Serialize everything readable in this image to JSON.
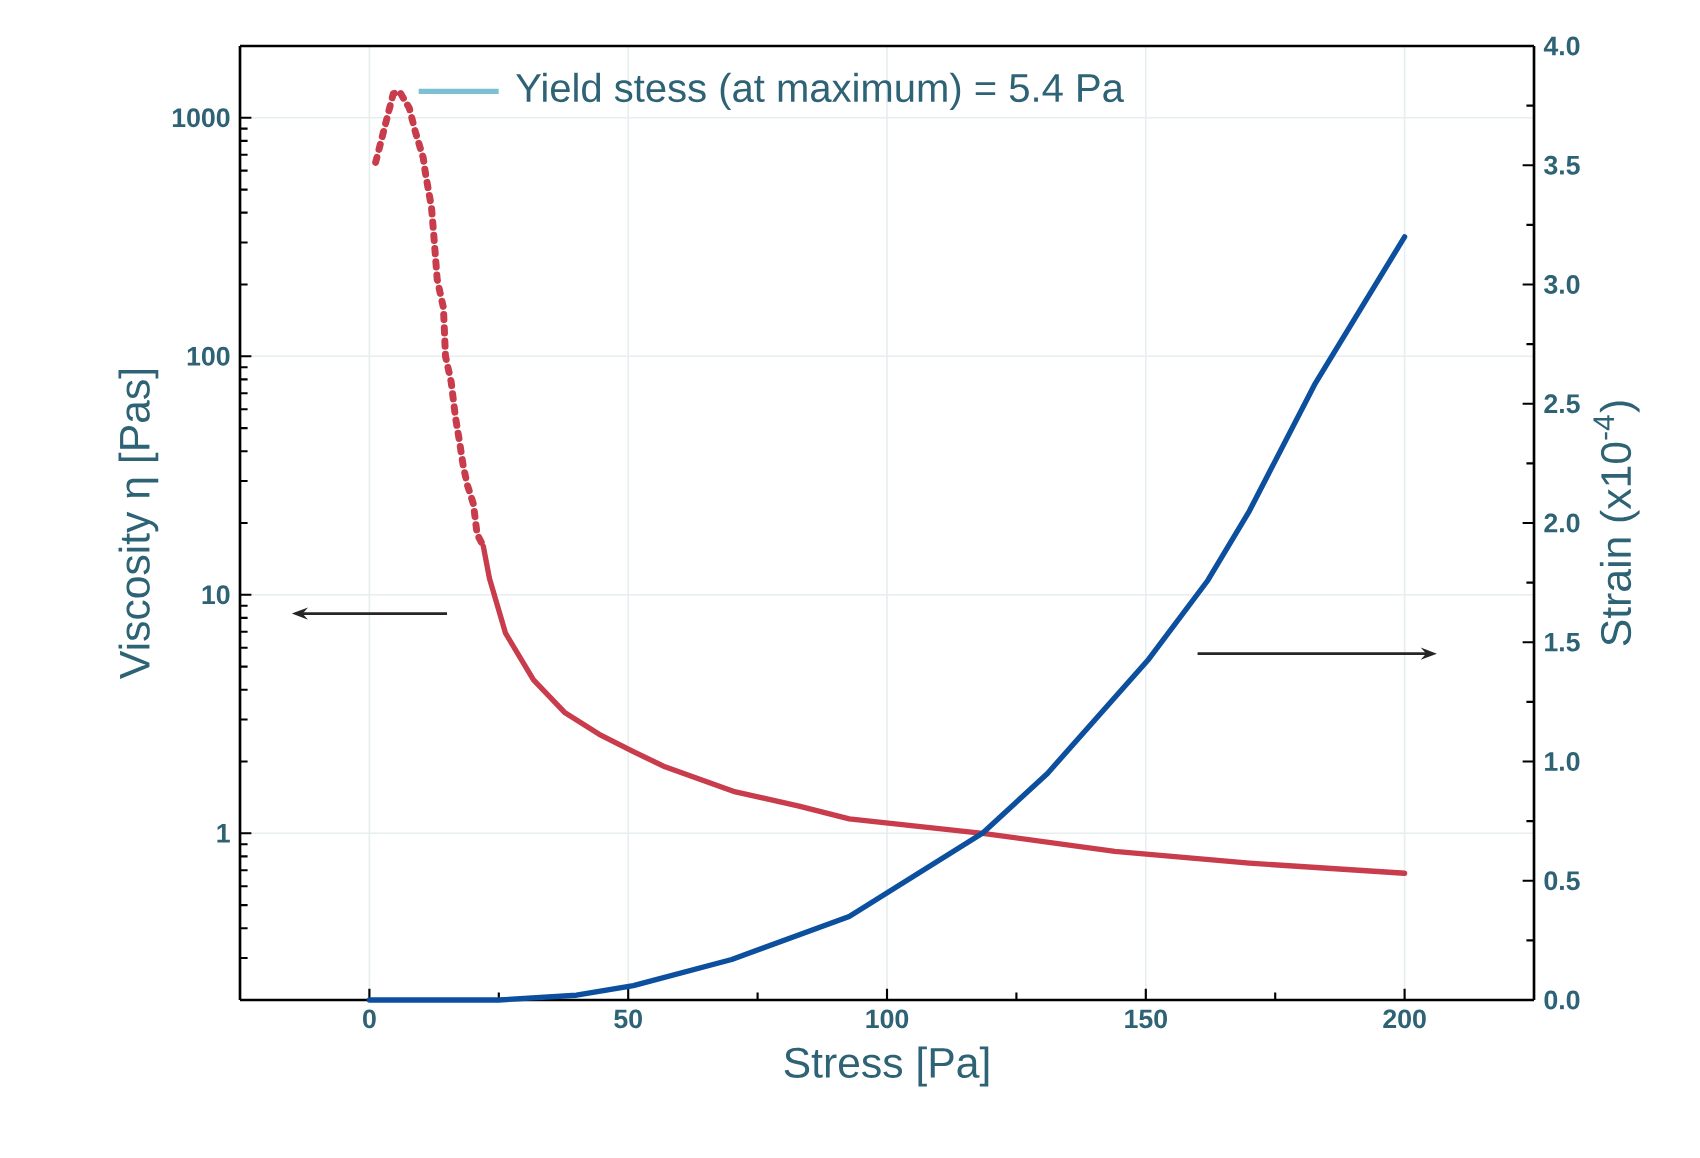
{
  "chart_data": {
    "type": "line",
    "xlabel": "Stress [Pa]",
    "ylabel": "Viscosity η [Pas]",
    "y2label": "Strain (x10$^{-4}$)",
    "annotations": [
      {
        "text": "Yield stess (at maximum) = 5.4 Pa",
        "x": 5.4,
        "y": 1290
      }
    ],
    "series": [
      {
        "color": "#c83c4c",
        "line_style": "dotted",
        "x": [
          1.2,
          2.7,
          4.6,
          5.8,
          7.7,
          8.9,
          10.4,
          10.8,
          12.0,
          12.4,
          13.1,
          14.3,
          14.7,
          15.8,
          16.6,
          17.4,
          18.1,
          18.9,
          20.1,
          20.8,
          22.0
        ],
        "values": [
          650,
          870,
          1260,
          1290,
          1100,
          870,
          680,
          590,
          420,
          330,
          210,
          160,
          100,
          78,
          56,
          44,
          35,
          29,
          24,
          18,
          16
        ]
      },
      {
        "color": "#c83c4c",
        "line_style": "solid",
        "x": [
          22.0,
          23.2,
          26.3,
          31.7,
          37.8,
          44.4,
          51,
          57.1,
          70.3,
          83,
          92.7,
          118.5,
          144,
          170,
          200
        ],
        "values": [
          16,
          11.7,
          6.9,
          4.4,
          3.2,
          2.6,
          2.2,
          1.9,
          1.5,
          1.3,
          1.15,
          1.0,
          0.84,
          0.75,
          0.68
        ]
      },
      {
        "color": "#0b4f9e",
        "line_style": "solid",
        "axis": "y2",
        "x": [
          0,
          25,
          40,
          51,
          70,
          92.7,
          118.5,
          131,
          150.6,
          162,
          170,
          182.6,
          200
        ],
        "values": [
          0,
          0,
          0.02,
          0.06,
          0.17,
          0.35,
          0.7,
          0.95,
          1.43,
          1.76,
          2.05,
          2.58,
          3.2
        ]
      }
    ],
    "xlim": [
      -25,
      225
    ],
    "xticks": [
      0,
      50,
      100,
      150,
      200
    ],
    "ylim": [
      0.2,
      2000
    ],
    "yticks": [
      1,
      10,
      100,
      1000
    ],
    "log": "y",
    "y2lim": [
      0,
      4
    ],
    "y2ticks": [
      {
        "value": 0,
        "label": "0.0"
      },
      0.5,
      {
        "value": 1,
        "label": "1.0"
      },
      1.5,
      {
        "value": 2,
        "label": "2.0"
      },
      2.5,
      {
        "value": 3,
        "label": "3.0"
      },
      3.5,
      {
        "value": 4,
        "label": "4.0"
      }
    ],
    "grid": true,
    "marker": "none"
  }
}
